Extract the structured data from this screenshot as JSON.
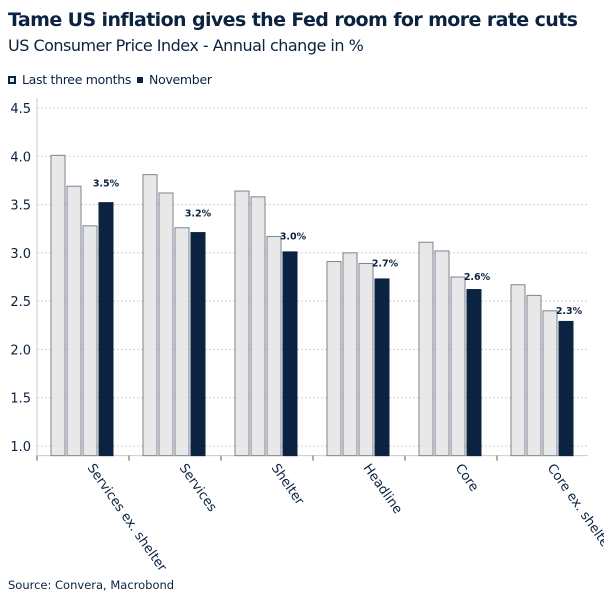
{
  "chart_data": {
    "type": "bar",
    "title": "Tame US inflation gives the Fed room for more rate cuts",
    "subtitle": "US Consumer Price Index - Annual change in %",
    "categories": [
      "Services ex. shelter",
      "Services",
      "Shelter",
      "Headline",
      "Core",
      "Core ex. shelter"
    ],
    "series": [
      {
        "name": "Last three months",
        "values": [
          [
            4.01,
            3.69,
            3.28
          ],
          [
            3.81,
            3.62,
            3.26
          ],
          [
            3.64,
            3.58,
            3.17
          ],
          [
            2.91,
            3.0,
            2.89
          ],
          [
            3.11,
            3.02,
            2.75
          ],
          [
            2.67,
            2.56,
            2.4
          ]
        ],
        "color": "#e8e8e8",
        "stroke": "#7a8691"
      },
      {
        "name": "November",
        "values": [
          3.52,
          3.21,
          3.01,
          2.73,
          2.62,
          2.29
        ],
        "color": "#0b2240"
      }
    ],
    "data_labels": [
      "3.5%",
      "3.2%",
      "3.0%",
      "2.7%",
      "2.6%",
      "2.3%"
    ],
    "yticks": [
      "1.0",
      "1.5",
      "2.0",
      "2.5",
      "3.0",
      "3.5",
      "4.0",
      "4.5"
    ],
    "ylim": [
      0.9,
      4.6
    ],
    "grid": true,
    "legend_position": "top-left",
    "xlabel": "",
    "ylabel": ""
  },
  "source": "Source: Convera, Macrobond"
}
